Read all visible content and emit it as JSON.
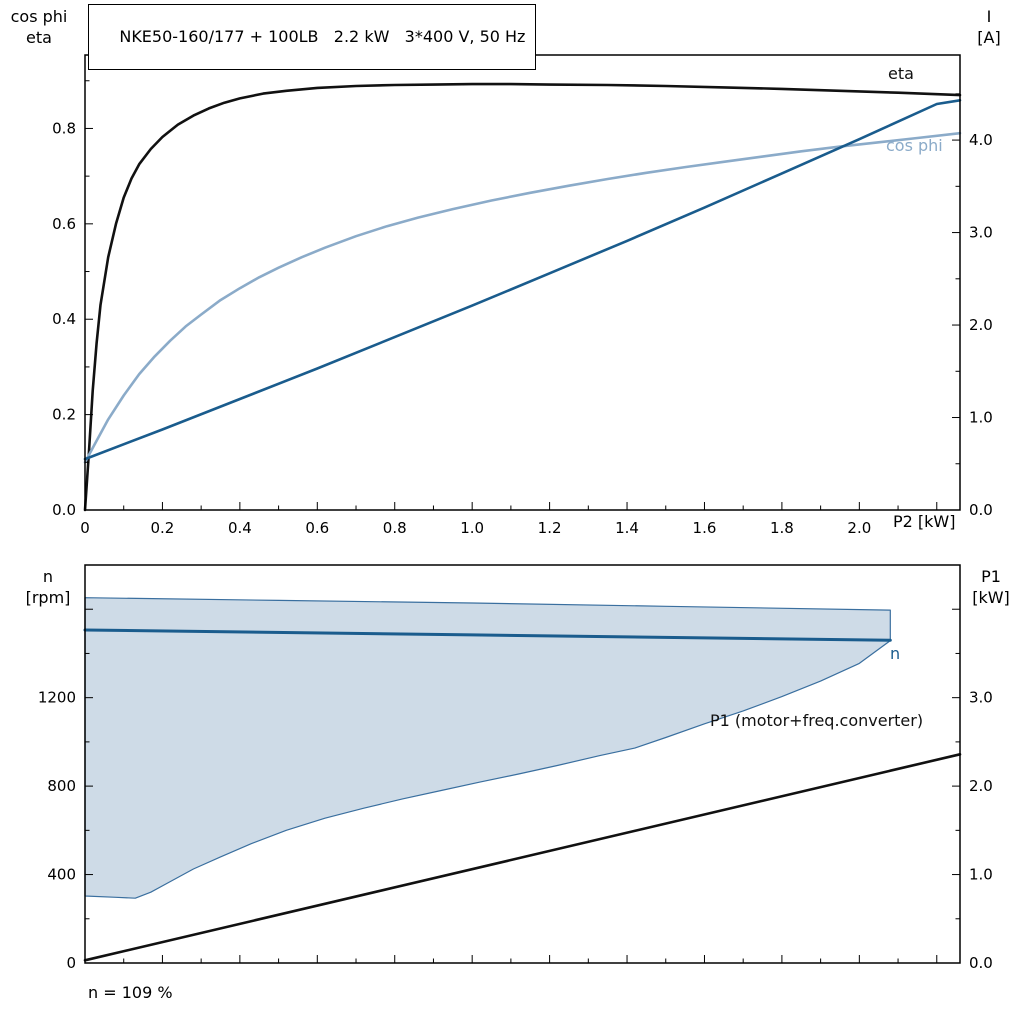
{
  "page": {
    "background": "#ffffff"
  },
  "chart_data": [
    {
      "type": "line",
      "title": "NKE50-160/177 + 100LB   2.2 kW   3*400 V, 50 Hz",
      "x": {
        "label": "P2 [kW]",
        "min": 0,
        "max": 2.26,
        "minor_step": 0.1,
        "majors": [
          0,
          0.2,
          0.4,
          0.6,
          0.8,
          1.0,
          1.2,
          1.4,
          1.6,
          1.8,
          2.0,
          2.2
        ],
        "labels": [
          "0",
          "0.2",
          "0.4",
          "0.6",
          "0.8",
          "1.0",
          "1.2",
          "1.4",
          "1.6",
          "1.8",
          "2.0",
          ""
        ]
      },
      "y_left": {
        "label_lines": [
          "cos phi",
          "eta"
        ],
        "min": 0,
        "max": 0.954,
        "minor_step": 0.1,
        "majors": [
          0,
          0.2,
          0.4,
          0.6,
          0.8
        ],
        "labels": [
          "0.0",
          "0.2",
          "0.4",
          "0.6",
          "0.8"
        ]
      },
      "y_right": {
        "label_lines": [
          "I",
          "[A]"
        ],
        "min": 0,
        "max": 4.92,
        "minor_step": 0.5,
        "majors": [
          0,
          1,
          2,
          3,
          4
        ],
        "labels": [
          "0.0",
          "1.0",
          "2.0",
          "3.0",
          "4.0"
        ]
      },
      "series": [
        {
          "name": "eta",
          "axis": "left",
          "color": "#111111",
          "width": 2.6,
          "points": [
            [
              0,
              0
            ],
            [
              0.01,
              0.12
            ],
            [
              0.02,
              0.25
            ],
            [
              0.03,
              0.35
            ],
            [
              0.04,
              0.43
            ],
            [
              0.06,
              0.53
            ],
            [
              0.08,
              0.6
            ],
            [
              0.1,
              0.655
            ],
            [
              0.12,
              0.695
            ],
            [
              0.14,
              0.725
            ],
            [
              0.17,
              0.757
            ],
            [
              0.2,
              0.782
            ],
            [
              0.24,
              0.808
            ],
            [
              0.28,
              0.827
            ],
            [
              0.32,
              0.842
            ],
            [
              0.36,
              0.854
            ],
            [
              0.4,
              0.863
            ],
            [
              0.46,
              0.873
            ],
            [
              0.52,
              0.879
            ],
            [
              0.6,
              0.885
            ],
            [
              0.7,
              0.889
            ],
            [
              0.8,
              0.891
            ],
            [
              0.9,
              0.892
            ],
            [
              1.0,
              0.893
            ],
            [
              1.1,
              0.893
            ],
            [
              1.2,
              0.892
            ],
            [
              1.35,
              0.891
            ],
            [
              1.5,
              0.889
            ],
            [
              1.65,
              0.886
            ],
            [
              1.8,
              0.883
            ],
            [
              1.95,
              0.879
            ],
            [
              2.1,
              0.875
            ],
            [
              2.26,
              0.87
            ]
          ]
        },
        {
          "name": "cos phi",
          "axis": "left",
          "color": "#8babc9",
          "width": 2.6,
          "points": [
            [
              0,
              0.1
            ],
            [
              0.03,
              0.145
            ],
            [
              0.06,
              0.19
            ],
            [
              0.1,
              0.24
            ],
            [
              0.14,
              0.285
            ],
            [
              0.18,
              0.322
            ],
            [
              0.22,
              0.355
            ],
            [
              0.26,
              0.385
            ],
            [
              0.3,
              0.41
            ],
            [
              0.35,
              0.44
            ],
            [
              0.4,
              0.465
            ],
            [
              0.45,
              0.488
            ],
            [
              0.5,
              0.508
            ],
            [
              0.56,
              0.53
            ],
            [
              0.62,
              0.55
            ],
            [
              0.7,
              0.574
            ],
            [
              0.78,
              0.595
            ],
            [
              0.86,
              0.613
            ],
            [
              0.95,
              0.631
            ],
            [
              1.05,
              0.649
            ],
            [
              1.15,
              0.665
            ],
            [
              1.25,
              0.68
            ],
            [
              1.35,
              0.694
            ],
            [
              1.45,
              0.707
            ],
            [
              1.55,
              0.719
            ],
            [
              1.65,
              0.73
            ],
            [
              1.75,
              0.741
            ],
            [
              1.85,
              0.752
            ],
            [
              1.95,
              0.762
            ],
            [
              2.05,
              0.771
            ],
            [
              2.15,
              0.78
            ],
            [
              2.26,
              0.79
            ]
          ]
        },
        {
          "name": "I",
          "axis": "right",
          "color": "#1a5c8d",
          "width": 2.6,
          "points": [
            [
              0,
              0.55
            ],
            [
              0.2,
              0.87
            ],
            [
              0.4,
              1.2
            ],
            [
              0.6,
              1.53
            ],
            [
              0.8,
              1.87
            ],
            [
              1.0,
              2.21
            ],
            [
              1.2,
              2.56
            ],
            [
              1.4,
              2.91
            ],
            [
              1.6,
              3.27
            ],
            [
              1.8,
              3.64
            ],
            [
              2.0,
              4.01
            ],
            [
              2.2,
              4.39
            ],
            [
              2.26,
              4.43
            ]
          ]
        }
      ]
    },
    {
      "type": "line",
      "x": {
        "label": "",
        "min": 0,
        "max": 2.26,
        "minor_step": 0.1,
        "majors": [
          0,
          0.2,
          0.4,
          0.6,
          0.8,
          1.0,
          1.2,
          1.4,
          1.6,
          1.8,
          2.0,
          2.2
        ],
        "labels": null
      },
      "y_left": {
        "label_lines": [
          "n",
          "[rpm]"
        ],
        "min": 0,
        "max": 1800,
        "minor_step": 200,
        "majors": [
          0,
          400,
          800,
          1200,
          1600
        ],
        "labels": [
          "0",
          "400",
          "800",
          "1200",
          ""
        ]
      },
      "y_right": {
        "label_lines": [
          "P1",
          "[kW]"
        ],
        "min": 0,
        "max": 4.5,
        "minor_step": 0.5,
        "majors": [
          0,
          1,
          2,
          3,
          4
        ],
        "labels": [
          "0.0",
          "1.0",
          "2.0",
          "3.0",
          ""
        ]
      },
      "band": {
        "name": "speed-control-range",
        "fill": "#cedbe7",
        "edge_color": "#3a6f9f",
        "upper": [
          [
            0,
            1652
          ],
          [
            0.5,
            1640
          ],
          [
            1.0,
            1628
          ],
          [
            1.5,
            1613
          ],
          [
            2.08,
            1596
          ]
        ],
        "lower": [
          [
            0,
            303
          ],
          [
            0.08,
            297
          ],
          [
            0.13,
            293
          ],
          [
            0.17,
            320
          ],
          [
            0.22,
            368
          ],
          [
            0.28,
            425
          ],
          [
            0.35,
            480
          ],
          [
            0.43,
            540
          ],
          [
            0.52,
            600
          ],
          [
            0.62,
            655
          ],
          [
            0.72,
            700
          ],
          [
            0.82,
            742
          ],
          [
            0.92,
            780
          ],
          [
            1.02,
            818
          ],
          [
            1.12,
            855
          ],
          [
            1.22,
            893
          ],
          [
            1.33,
            938
          ],
          [
            1.42,
            972
          ],
          [
            1.5,
            1020
          ],
          [
            1.6,
            1082
          ],
          [
            1.7,
            1140
          ],
          [
            1.8,
            1205
          ],
          [
            1.9,
            1275
          ],
          [
            2.0,
            1355
          ],
          [
            2.08,
            1458
          ]
        ]
      },
      "series": [
        {
          "name": "n",
          "axis": "left",
          "color": "#1a5c8d",
          "width": 3,
          "points": [
            [
              0,
              1506
            ],
            [
              1.0,
              1484
            ],
            [
              2.08,
              1460
            ]
          ]
        },
        {
          "name": "P1 (motor+freq.converter)",
          "axis": "right",
          "color": "#111111",
          "width": 2.6,
          "points": [
            [
              0,
              0.03
            ],
            [
              2.26,
              2.36
            ]
          ]
        }
      ],
      "footnote": "n = 109 %"
    }
  ]
}
